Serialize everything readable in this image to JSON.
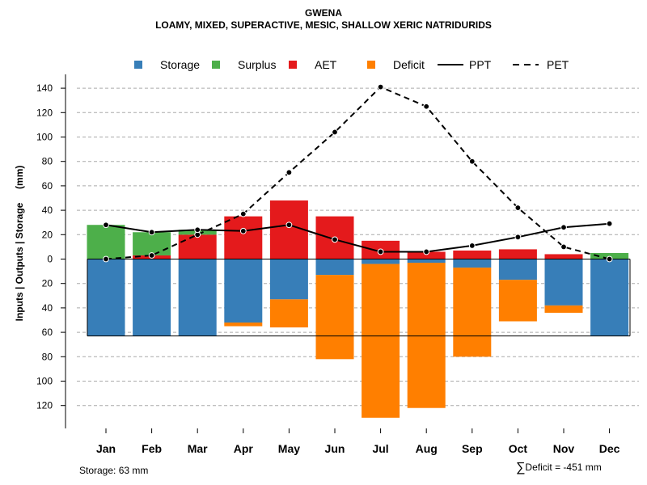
{
  "title": "GWENA",
  "subtitle": "LOAMY, MIXED, SUPERACTIVE, MESIC, SHALLOW XERIC NATRIDURIDS",
  "colors": {
    "storage": "#377EB8",
    "surplus": "#4DAF4A",
    "aet": "#E41A1C",
    "deficit": "#FF7F00",
    "grid": "#aaaaaa"
  },
  "chart_data": {
    "type": "bar",
    "title": "GWENA",
    "subtitle": "LOAMY, MIXED, SUPERACTIVE, MESIC, SHALLOW XERIC NATRIDURIDS",
    "xlabel": "",
    "ylabel": "Inputs | Outputs | Storage     (mm)",
    "ylim": [
      -137,
      145
    ],
    "y_ticks": [
      140,
      120,
      100,
      80,
      60,
      40,
      20,
      0,
      -20,
      -40,
      -60,
      -80,
      -100,
      -120
    ],
    "y_tick_labels": [
      "140",
      "120",
      "100",
      "80",
      "60",
      "40",
      "20",
      "0",
      "20",
      "40",
      "60",
      "80",
      "100",
      "120"
    ],
    "grid": true,
    "legend_position": "top",
    "legend": [
      {
        "key": "storage",
        "label": "Storage",
        "kind": "box"
      },
      {
        "key": "surplus",
        "label": "Surplus",
        "kind": "box"
      },
      {
        "key": "aet",
        "label": "AET",
        "kind": "box"
      },
      {
        "key": "deficit",
        "label": "Deficit",
        "kind": "box"
      },
      {
        "key": "ppt",
        "label": "PPT",
        "kind": "solid"
      },
      {
        "key": "pet",
        "label": "PET",
        "kind": "dashed"
      }
    ],
    "categories": [
      "Jan",
      "Feb",
      "Mar",
      "Apr",
      "May",
      "Jun",
      "Jul",
      "Aug",
      "Sep",
      "Oct",
      "Nov",
      "Dec"
    ],
    "storage_capacity": 63,
    "series": [
      {
        "name": "Storage",
        "values": [
          63,
          63,
          63,
          52,
          33,
          13,
          4,
          3,
          7,
          17,
          38,
          63
        ]
      },
      {
        "name": "Surplus",
        "values": [
          28,
          19,
          4,
          0,
          0,
          0,
          0,
          0,
          0,
          0,
          0,
          5
        ]
      },
      {
        "name": "AET",
        "values": [
          0,
          3,
          20,
          35,
          48,
          35,
          15,
          6,
          7,
          8,
          4,
          0
        ]
      },
      {
        "name": "Deficit",
        "values": [
          0,
          0,
          0,
          3,
          23,
          69,
          126,
          119,
          73,
          34,
          6,
          0
        ]
      },
      {
        "name": "PPT",
        "values": [
          28,
          22,
          24,
          23,
          28,
          16,
          6,
          6,
          11,
          18,
          26,
          29
        ]
      },
      {
        "name": "PET",
        "values": [
          0,
          3,
          20,
          37,
          71,
          104,
          141,
          125,
          80,
          42,
          10,
          0
        ]
      }
    ]
  },
  "footnotes": {
    "storage": "Storage: 63 mm",
    "deficit_sigma": "∑",
    "deficit": "Deficit = -451 mm"
  }
}
